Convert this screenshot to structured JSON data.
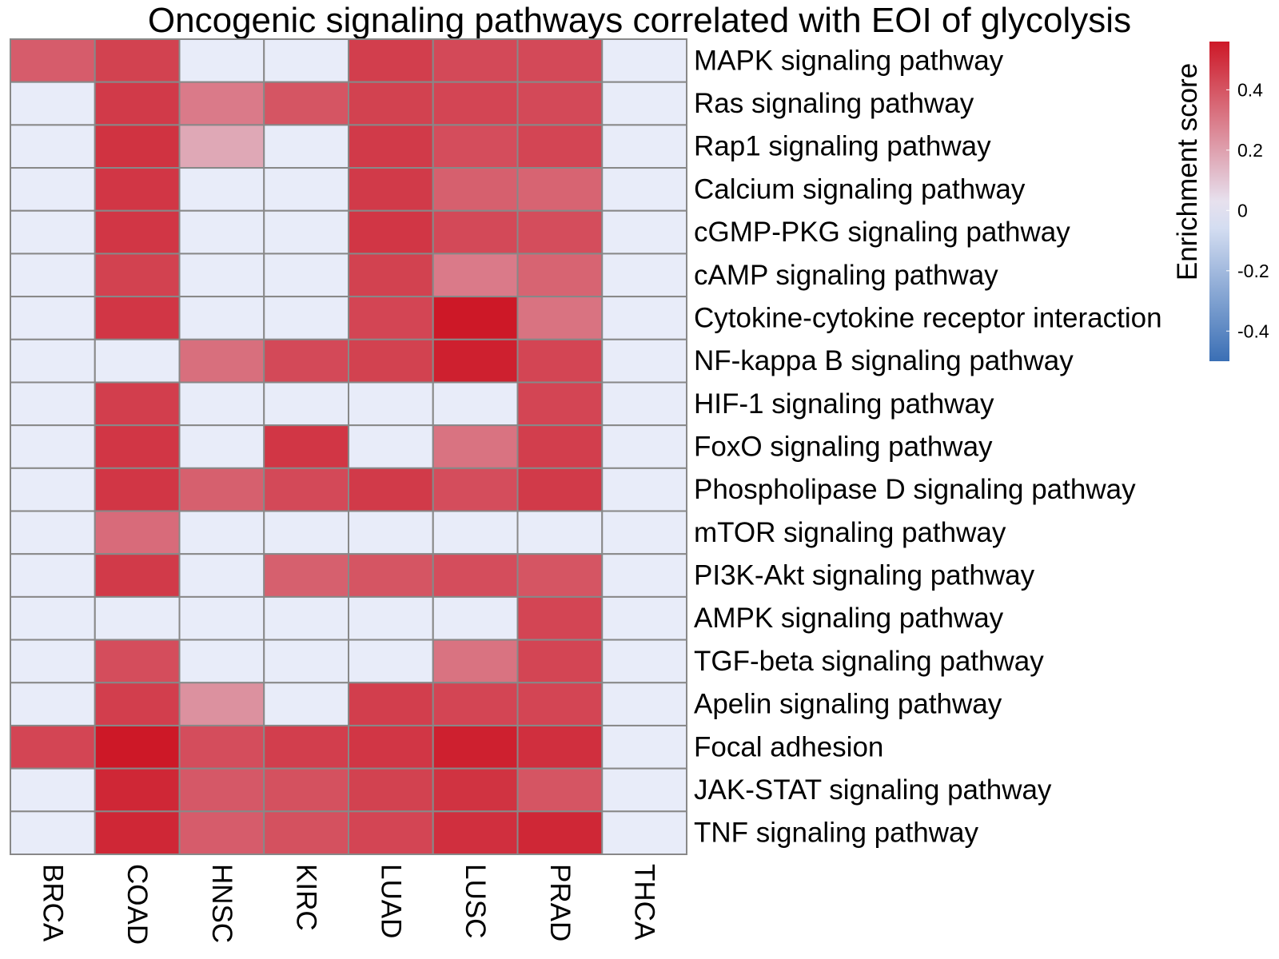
{
  "chart_data": {
    "type": "heatmap",
    "title": "Oncogenic signaling pathways correlated with EOI of glycolysis",
    "columns": [
      "BRCA",
      "COAD",
      "HNSC",
      "KIRC",
      "LUAD",
      "LUSC",
      "PRAD",
      "THCA"
    ],
    "rows": [
      "MAPK signaling pathway",
      "Ras signaling pathway",
      "Rap1 signaling pathway",
      "Calcium signaling pathway",
      "cGMP-PKG signaling pathway",
      "cAMP signaling pathway",
      "Cytokine-cytokine receptor interaction",
      "NF-kappa B signaling pathway",
      "HIF-1 signaling pathway",
      "FoxO signaling pathway",
      "Phospholipase D signaling pathway",
      "mTOR signaling pathway",
      "PI3K-Akt signaling pathway",
      "AMPK signaling pathway",
      "TGF-beta signaling pathway",
      "Apelin signaling pathway",
      "Focal adhesion",
      "JAK-STAT signaling pathway",
      "TNF signaling pathway"
    ],
    "values": [
      [
        0.38,
        0.45,
        0,
        0,
        0.46,
        0.43,
        0.43,
        0
      ],
      [
        0,
        0.47,
        0.3,
        0.4,
        0.45,
        0.44,
        0.43,
        0
      ],
      [
        0,
        0.49,
        0.18,
        0,
        0.47,
        0.42,
        0.44,
        0
      ],
      [
        0,
        0.48,
        0,
        0,
        0.47,
        0.37,
        0.36,
        0
      ],
      [
        0,
        0.48,
        0,
        0,
        0.48,
        0.43,
        0.42,
        0
      ],
      [
        0,
        0.45,
        0,
        0,
        0.45,
        0.3,
        0.36,
        0
      ],
      [
        0,
        0.48,
        0,
        0,
        0.44,
        0.56,
        0.32,
        0
      ],
      [
        0,
        0,
        0.33,
        0.43,
        0.45,
        0.54,
        0.44,
        0
      ],
      [
        0,
        0.46,
        0,
        0,
        0,
        0,
        0.44,
        0
      ],
      [
        0,
        0.48,
        0,
        0.48,
        0,
        0.32,
        0.46,
        0
      ],
      [
        0,
        0.48,
        0.37,
        0.43,
        0.47,
        0.42,
        0.47,
        0
      ],
      [
        0,
        0.34,
        0,
        0,
        0,
        0,
        0,
        0
      ],
      [
        0,
        0.47,
        0,
        0.37,
        0.4,
        0.42,
        0.4,
        0
      ],
      [
        0,
        0,
        0,
        0,
        0,
        0,
        0.44,
        0
      ],
      [
        0,
        0.42,
        0,
        0,
        0,
        0.32,
        0.44,
        0
      ],
      [
        0,
        0.46,
        0.24,
        0,
        0.46,
        0.44,
        0.44,
        0
      ],
      [
        0.44,
        0.56,
        0.42,
        0.46,
        0.48,
        0.54,
        0.5,
        0
      ],
      [
        0,
        0.52,
        0.39,
        0.41,
        0.45,
        0.49,
        0.4,
        0
      ],
      [
        0,
        0.52,
        0.38,
        0.41,
        0.44,
        0.5,
        0.52,
        0
      ]
    ],
    "legend": {
      "title": "Enrichment score",
      "ticks": [
        0.4,
        0.2,
        0,
        -0.2,
        -0.4
      ],
      "tick_labels": [
        "0.4",
        "0.2",
        "0",
        "-0.2",
        "-0.4"
      ],
      "range": [
        -0.5,
        0.56
      ]
    },
    "colors": {
      "low": "#3a6fb5",
      "mid": "#e8ecf9",
      "high": "#cd1827",
      "cell_border": "#888888"
    }
  }
}
